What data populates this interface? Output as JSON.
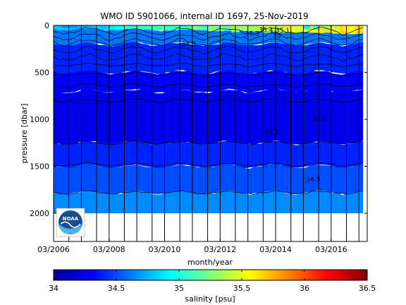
{
  "chart_data": {
    "type": "heatmap",
    "title": "WMO ID 5901066, internal ID 1697, 25-Nov-2019",
    "xlabel": "month/year",
    "ylabel": "pressure [dbar]",
    "x_ticks": [
      "03/2006",
      "03/2008",
      "03/2010",
      "03/2012",
      "03/2014",
      "03/2016"
    ],
    "y_ticks": [
      "0",
      "500",
      "1000",
      "1500",
      "2000"
    ],
    "y_tick_values": [
      0,
      500,
      1000,
      1500,
      2000
    ],
    "ylim": [
      0,
      2300
    ],
    "x_start_year": 2006.0,
    "x_end_year": 2017.3,
    "data_end_year": 2017.15,
    "data_max_pressure": 2000,
    "colorbar": {
      "label": "salinity [psu]",
      "range": [
        34,
        36.5
      ],
      "ticks": [
        "34",
        "34.5",
        "35",
        "35.5",
        "36",
        "36.5"
      ],
      "tick_values": [
        34,
        34.5,
        35,
        35.5,
        36,
        36.5
      ]
    },
    "profile_dates": [
      2006.55,
      2007.0,
      2007.55,
      2008.0,
      2008.55,
      2009.0,
      2009.55,
      2010.0,
      2010.55,
      2011.0,
      2011.55,
      2012.0,
      2012.55,
      2013.0,
      2013.55,
      2014.0,
      2014.55,
      2015.0,
      2015.55,
      2016.0,
      2016.55,
      2017.0
    ],
    "salinity_layers": [
      {
        "salinity": 34.8,
        "depth_top": 0,
        "depth_bottom": 40
      },
      {
        "salinity": 34.6,
        "depth_top": 40,
        "depth_bottom": 200
      },
      {
        "salinity": 34.4,
        "depth_top": 200,
        "depth_bottom": 500
      },
      {
        "salinity": 34.3,
        "depth_top": 500,
        "depth_bottom": 700
      },
      {
        "salinity": 34.25,
        "depth_top": 700,
        "depth_bottom": 1250
      },
      {
        "salinity": 34.4,
        "depth_top": 1250,
        "depth_bottom": 1500
      },
      {
        "salinity": 34.5,
        "depth_top": 1500,
        "depth_bottom": 1780
      },
      {
        "salinity": 34.65,
        "depth_top": 1780,
        "depth_bottom": 2000
      }
    ],
    "contour_labels": [
      "34.6",
      "34.6",
      "34.5",
      "34.5",
      "35.3",
      "35.4",
      "35.1",
      "35"
    ]
  },
  "logo": {
    "text": "NOAA"
  }
}
